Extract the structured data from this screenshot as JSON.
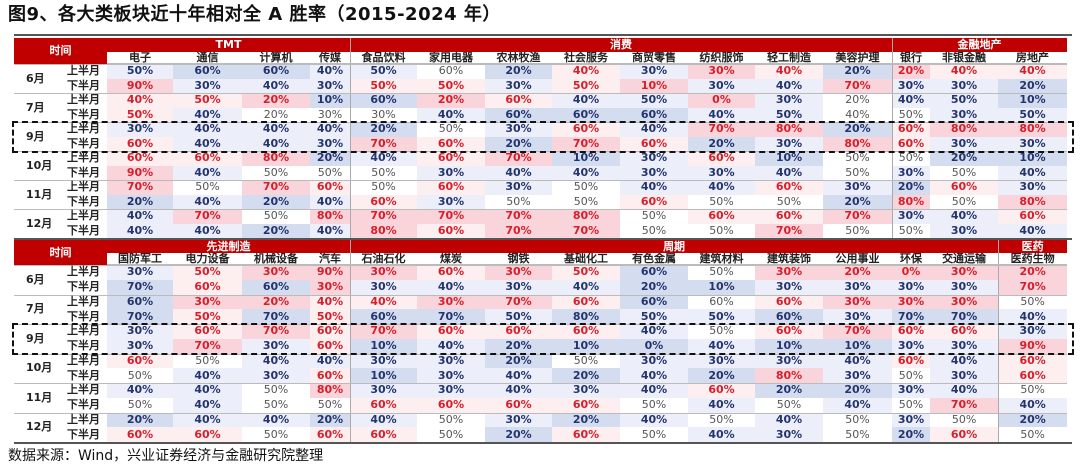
{
  "title": "图9、各大类板块近十年相对全 A 胜率（2015-2024 年）",
  "source": "数据来源：Wind，兴业证券经济与金融研究院整理",
  "time_label": "时间",
  "tone_colors": {
    "r": "#d81e2a",
    "b": "#24346e",
    "g": "#555555"
  },
  "tables": [
    {
      "groups": [
        {
          "name": "TMT",
          "span": 4
        },
        {
          "name": "消费",
          "span": 8
        },
        {
          "name": "金融地产",
          "span": 3
        }
      ],
      "columns": [
        "电子",
        "通信",
        "计算机",
        "传媒",
        "食品饮料",
        "家用电器",
        "农林牧渔",
        "社会服务",
        "商贸零售",
        "纺织服饰",
        "轻工制造",
        "美容护理",
        "银行",
        "非银金融",
        "房地产"
      ],
      "months": [
        {
          "label": "6月",
          "halves": [
            {
              "label": "上半月",
              "values": [
                "50%",
                "60%",
                "60%",
                "40%",
                "50%",
                "60%",
                "20%",
                "40%",
                "30%",
                "30%",
                "40%",
                "20%",
                "20%",
                "40%",
                "40%"
              ],
              "tones": "bbbbbgbrbrrbrrr"
            },
            {
              "label": "下半月",
              "values": [
                "90%",
                "30%",
                "40%",
                "30%",
                "50%",
                "50%",
                "30%",
                "50%",
                "10%",
                "30%",
                "40%",
                "70%",
                "30%",
                "30%",
                "20%"
              ],
              "tones": "rbbbrrbrrbbrbbb"
            }
          ]
        },
        {
          "label": "7月",
          "halves": [
            {
              "label": "上半月",
              "values": [
                "40%",
                "50%",
                "20%",
                "10%",
                "60%",
                "20%",
                "60%",
                "40%",
                "50%",
                "0%",
                "30%",
                "20%",
                "40%",
                "50%",
                "10%"
              ],
              "tones": "rrrbbrrbbrbgbbb"
            },
            {
              "label": "下半月",
              "values": [
                "50%",
                "40%",
                "20%",
                "30%",
                "30%",
                "40%",
                "60%",
                "60%",
                "60%",
                "40%",
                "50%",
                "40%",
                "50%",
                "30%",
                "50%"
              ],
              "tones": "rbgggbbbbbbggbb"
            }
          ]
        },
        {
          "label": "9月",
          "highlight": true,
          "halves": [
            {
              "label": "上半月",
              "values": [
                "30%",
                "40%",
                "40%",
                "40%",
                "20%",
                "50%",
                "30%",
                "60%",
                "40%",
                "70%",
                "80%",
                "20%",
                "60%",
                "80%",
                "80%"
              ],
              "tones": "bbbbbgbrbrrbrrr"
            },
            {
              "label": "下半月",
              "values": [
                "60%",
                "40%",
                "40%",
                "30%",
                "70%",
                "60%",
                "20%",
                "70%",
                "60%",
                "20%",
                "30%",
                "80%",
                "60%",
                "30%",
                "30%"
              ],
              "tones": "rbbbrrbrrbbrrbb"
            }
          ]
        },
        {
          "label": "10月",
          "halves": [
            {
              "label": "上半月",
              "values": [
                "60%",
                "60%",
                "80%",
                "20%",
                "40%",
                "60%",
                "70%",
                "10%",
                "30%",
                "60%",
                "10%",
                "50%",
                "50%",
                "20%",
                "10%"
              ],
              "tones": "rrrbbrrbbrbggbb"
            },
            {
              "label": "下半月",
              "values": [
                "90%",
                "40%",
                "50%",
                "50%",
                "50%",
                "30%",
                "40%",
                "40%",
                "30%",
                "30%",
                "40%",
                "50%",
                "30%",
                "50%",
                "40%"
              ],
              "tones": "rbgggbbbbbbgbgb"
            }
          ]
        },
        {
          "label": "11月",
          "halves": [
            {
              "label": "上半月",
              "values": [
                "70%",
                "50%",
                "70%",
                "60%",
                "50%",
                "60%",
                "30%",
                "50%",
                "40%",
                "40%",
                "60%",
                "30%",
                "20%",
                "60%",
                "30%"
              ],
              "tones": "rgrrgrbgbbrbbrb"
            },
            {
              "label": "下半月",
              "values": [
                "20%",
                "40%",
                "20%",
                "40%",
                "60%",
                "30%",
                "50%",
                "50%",
                "60%",
                "50%",
                "50%",
                "20%",
                "80%",
                "50%",
                "80%"
              ],
              "tones": "bbbbrbggrggbrgr"
            }
          ]
        },
        {
          "label": "12月",
          "halves": [
            {
              "label": "上半月",
              "values": [
                "40%",
                "70%",
                "50%",
                "80%",
                "70%",
                "70%",
                "70%",
                "80%",
                "50%",
                "60%",
                "60%",
                "70%",
                "30%",
                "40%",
                "60%"
              ],
              "tones": "brgrrrrrgrrrbbr"
            },
            {
              "label": "下半月",
              "values": [
                "40%",
                "40%",
                "20%",
                "40%",
                "80%",
                "60%",
                "70%",
                "70%",
                "50%",
                "50%",
                "70%",
                "50%",
                "50%",
                "30%",
                "40%"
              ],
              "tones": "bbbbrrrrggrggbb"
            }
          ]
        }
      ]
    },
    {
      "groups": [
        {
          "name": "先进制造",
          "span": 4
        },
        {
          "name": "周期",
          "span": 10
        },
        {
          "name": "医药",
          "span": 1
        }
      ],
      "columns": [
        "国防军工",
        "电力设备",
        "机械设备",
        "汽车",
        "石油石化",
        "煤炭",
        "钢铁",
        "基础化工",
        "有色金属",
        "建筑材料",
        "建筑装饰",
        "公用事业",
        "环保",
        "交通运输",
        "医药生物"
      ],
      "months": [
        {
          "label": "6月",
          "halves": [
            {
              "label": "上半月",
              "values": [
                "30%",
                "50%",
                "30%",
                "90%",
                "30%",
                "60%",
                "30%",
                "50%",
                "60%",
                "50%",
                "30%",
                "20%",
                "0%",
                "30%",
                "20%"
              ],
              "tones": "brrrrrrrbgrrrrr"
            },
            {
              "label": "下半月",
              "values": [
                "70%",
                "60%",
                "60%",
                "30%",
                "30%",
                "40%",
                "30%",
                "40%",
                "20%",
                "10%",
                "30%",
                "30%",
                "30%",
                "30%",
                "70%"
              ],
              "tones": "brbrbbbbbbbbbbr"
            }
          ]
        },
        {
          "label": "7月",
          "halves": [
            {
              "label": "上半月",
              "values": [
                "60%",
                "30%",
                "20%",
                "40%",
                "40%",
                "30%",
                "70%",
                "60%",
                "60%",
                "60%",
                "60%",
                "30%",
                "30%",
                "30%",
                "50%"
              ],
              "tones": "brrrrrrrbgrrrrg"
            },
            {
              "label": "下半月",
              "values": [
                "70%",
                "50%",
                "70%",
                "50%",
                "60%",
                "70%",
                "50%",
                "80%",
                "50%",
                "50%",
                "60%",
                "30%",
                "70%",
                "70%",
                "40%"
              ],
              "tones": "brbrbbbbbbbbbbb"
            }
          ]
        },
        {
          "label": "9月",
          "highlight": true,
          "halves": [
            {
              "label": "上半月",
              "values": [
                "30%",
                "60%",
                "70%",
                "60%",
                "70%",
                "60%",
                "60%",
                "60%",
                "40%",
                "50%",
                "60%",
                "70%",
                "60%",
                "60%",
                "30%"
              ],
              "tones": "brrrrrrrbgrrrrb"
            },
            {
              "label": "下半月",
              "values": [
                "30%",
                "70%",
                "30%",
                "60%",
                "10%",
                "40%",
                "20%",
                "10%",
                "0%",
                "40%",
                "10%",
                "10%",
                "30%",
                "30%",
                "90%"
              ],
              "tones": "brbrbbbbbbbbbbr"
            }
          ]
        },
        {
          "label": "10月",
          "halves": [
            {
              "label": "上半月",
              "values": [
                "60%",
                "50%",
                "40%",
                "40%",
                "30%",
                "30%",
                "20%",
                "50%",
                "30%",
                "30%",
                "30%",
                "40%",
                "60%",
                "40%",
                "60%"
              ],
              "tones": "rgbbbbbgbbbbrbr"
            },
            {
              "label": "下半月",
              "values": [
                "50%",
                "40%",
                "30%",
                "60%",
                "10%",
                "30%",
                "40%",
                "20%",
                "40%",
                "20%",
                "80%",
                "30%",
                "50%",
                "30%",
                "60%"
              ],
              "tones": "gbbrbbbbbbrbgbr"
            }
          ]
        },
        {
          "label": "11月",
          "halves": [
            {
              "label": "上半月",
              "values": [
                "40%",
                "40%",
                "50%",
                "80%",
                "30%",
                "30%",
                "40%",
                "30%",
                "40%",
                "60%",
                "20%",
                "20%",
                "30%",
                "40%",
                "50%"
              ],
              "tones": "bbgrbbbbbrbbbbg"
            },
            {
              "label": "下半月",
              "values": [
                "50%",
                "40%",
                "50%",
                "50%",
                "60%",
                "60%",
                "60%",
                "60%",
                "50%",
                "40%",
                "50%",
                "40%",
                "50%",
                "70%",
                "40%"
              ],
              "tones": "gbggrrrrgbgbgrb"
            }
          ]
        },
        {
          "label": "12月",
          "halves": [
            {
              "label": "上半月",
              "values": [
                "20%",
                "40%",
                "40%",
                "20%",
                "40%",
                "50%",
                "30%",
                "20%",
                "40%",
                "50%",
                "40%",
                "50%",
                "30%",
                "50%",
                "20%"
              ],
              "tones": "bbbbbgbbbgbgbgb"
            },
            {
              "label": "下半月",
              "values": [
                "60%",
                "60%",
                "50%",
                "60%",
                "60%",
                "50%",
                "20%",
                "60%",
                "50%",
                "40%",
                "30%",
                "50%",
                "20%",
                "60%",
                "50%"
              ],
              "tones": "rrgrrgbrgbbgbrg"
            }
          ]
        }
      ]
    }
  ]
}
